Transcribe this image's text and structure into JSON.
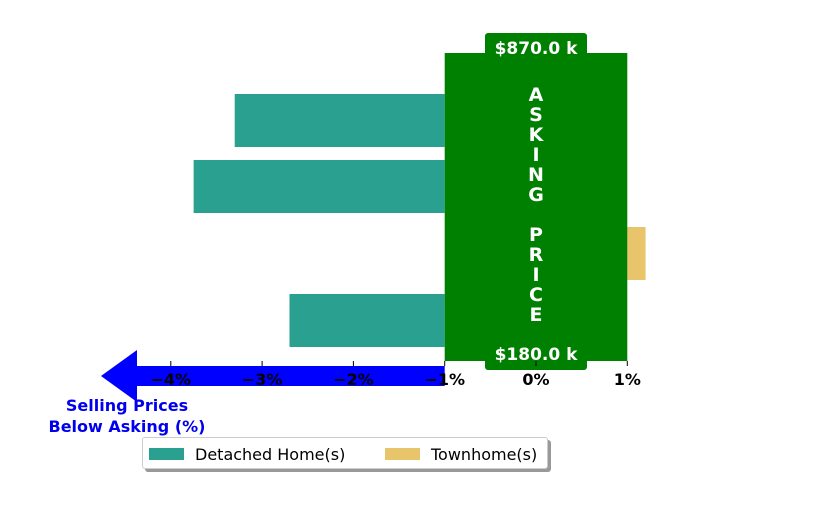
{
  "chart_data": {
    "type": "bar",
    "orientation": "horizontal",
    "title": "",
    "categories": [
      "",
      "",
      "",
      ""
    ],
    "series": [
      {
        "name": "Detached Home(s)",
        "color": "#2aa090",
        "values": [
          -3.3,
          -3.75,
          null,
          -2.7
        ]
      },
      {
        "name": "Townhome(s)",
        "color": "#e8c46a",
        "values": [
          null,
          null,
          1.2,
          null
        ]
      }
    ],
    "xlim": [
      -4.6,
      1.15
    ],
    "x_ticks": [
      {
        "value": -4,
        "label": "−4%"
      },
      {
        "value": -3,
        "label": "−3%"
      },
      {
        "value": -2,
        "label": "−2%"
      },
      {
        "value": -1,
        "label": "−1%"
      },
      {
        "value": 0,
        "label": "0%"
      },
      {
        "value": 1,
        "label": "1%"
      }
    ],
    "xlabel_lines": [
      "Selling Prices",
      "Below Asking (%)"
    ],
    "asking_band": {
      "x_range": [
        -1,
        1
      ],
      "label": "ASKING PRICE",
      "top_price": "$870.0 k",
      "bottom_price": "$180.0 k",
      "color": "#008000"
    },
    "arrow_color": "#0000ff",
    "legend_position": "bottom-center",
    "grid": false
  }
}
